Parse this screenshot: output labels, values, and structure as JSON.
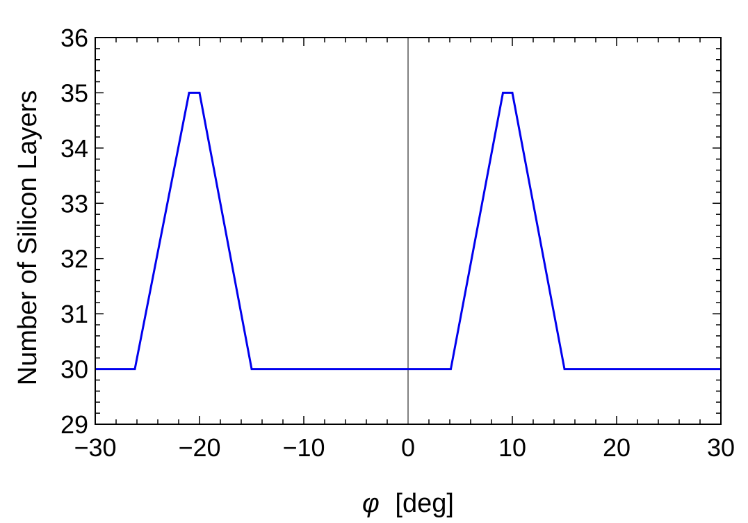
{
  "chart_data": {
    "type": "line",
    "xlabel_symbol": "φ",
    "xlabel_unit": "[deg]",
    "ylabel": "Number of Silicon Layers",
    "xlim": [
      -30,
      30
    ],
    "ylim": [
      29,
      36
    ],
    "x_ticks": [
      -30,
      -20,
      -10,
      0,
      10,
      20,
      30
    ],
    "x_tick_labels": [
      "−30",
      "−20",
      "−10",
      "0",
      "10",
      "20",
      "30"
    ],
    "y_ticks": [
      29,
      30,
      31,
      32,
      33,
      34,
      35,
      36
    ],
    "y_tick_labels": [
      "29",
      "30",
      "31",
      "32",
      "33",
      "34",
      "35",
      "36"
    ],
    "vertical_reference_x": 0,
    "series": [
      {
        "color": "#0000ee",
        "x": [
          -30,
          -26.2,
          -21,
          -20,
          -15,
          4.1,
          9.1,
          10,
          15,
          30
        ],
        "y": [
          30,
          30,
          35,
          35,
          30,
          30,
          35,
          35,
          30,
          30
        ]
      }
    ],
    "grid": false,
    "colors": {
      "axis": "#000000",
      "reference_line": "#808080"
    }
  }
}
